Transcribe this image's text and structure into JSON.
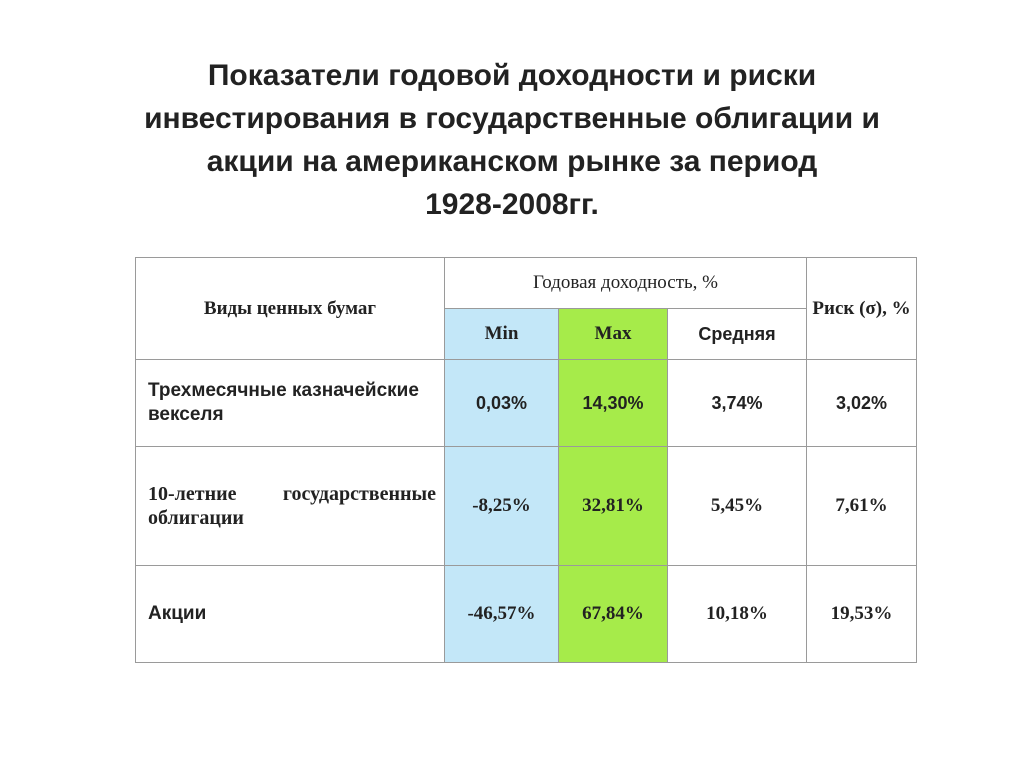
{
  "title": {
    "lines": [
      "Показатели годовой доходности и риски",
      "инвестирования в государственные облигации и",
      "акции на американском рынке за период",
      "1928-2008гг."
    ]
  },
  "table": {
    "headers": {
      "security_type": "Виды ценных бумаг",
      "annual_return": "Годовая доходность, %",
      "min": "Min",
      "max": "Max",
      "average": "Средняя",
      "risk": "Риск (σ), %"
    },
    "rows": [
      {
        "label": "Трехмесячные казначейские векселя",
        "min": "0,03%",
        "max": "14,30%",
        "average": "3,74%",
        "risk": "3,02%"
      },
      {
        "label": "10-летние государственные облигации",
        "min": "-8,25%",
        "max": "32,81%",
        "average": "5,45%",
        "risk": "7,61%"
      },
      {
        "label": "Акции",
        "min": "-46,57%",
        "max": "67,84%",
        "average": "10,18%",
        "risk": "19,53%"
      }
    ]
  },
  "colors": {
    "min_column": "#c3e7f8",
    "max_column": "#a6eb4a",
    "border": "#9a9a9a",
    "text": "#222222"
  }
}
